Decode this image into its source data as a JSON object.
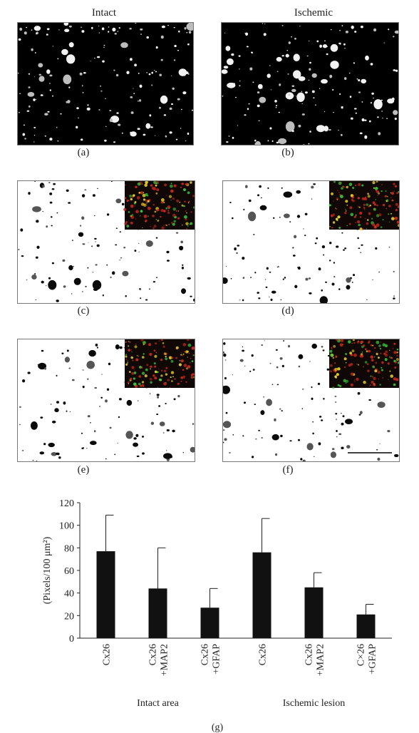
{
  "columns": {
    "left": "Intact",
    "right": "Ischemic"
  },
  "panels": [
    {
      "id": "a",
      "label": "(a)",
      "style": "dark",
      "inset": false
    },
    {
      "id": "b",
      "label": "(b)",
      "style": "dark",
      "inset": false
    },
    {
      "id": "c",
      "label": "(c)",
      "style": "light",
      "inset": true
    },
    {
      "id": "d",
      "label": "(d)",
      "style": "light",
      "inset": true
    },
    {
      "id": "e",
      "label": "(e)",
      "style": "light",
      "inset": true
    },
    {
      "id": "f",
      "label": "(f)",
      "style": "light",
      "inset": true,
      "scale_bar": true
    }
  ],
  "colors": {
    "bar": "#111111",
    "inset_red": "#c8281e",
    "inset_green": "#38c23a",
    "inset_yellow": "#e6d02a"
  },
  "chart_data": {
    "type": "bar",
    "panel_label": "(g)",
    "ylabel": "(Pixels/100 μm²)",
    "ylim": [
      0,
      120
    ],
    "yticks": [
      0,
      20,
      40,
      60,
      80,
      100,
      120
    ],
    "categories": [
      "Cx26",
      "Cx26 +MAP2",
      "Cx26 +GFAP",
      "Cx26",
      "Cx26 +MAP2",
      "C×26 +GFAP"
    ],
    "category_lines": [
      [
        "Cx26"
      ],
      [
        "Cx26",
        "+MAP2"
      ],
      [
        "Cx26",
        "+GFAP"
      ],
      [
        "Cx26"
      ],
      [
        "Cx26",
        "+MAP2"
      ],
      [
        "C×26",
        "+GFAP"
      ]
    ],
    "values": [
      77,
      44,
      27,
      76,
      45,
      21
    ],
    "errors": [
      32,
      36,
      17,
      30,
      13,
      9
    ],
    "groups": [
      {
        "label": "Intact area",
        "categories": [
          0,
          1,
          2
        ]
      },
      {
        "label": "Ischemic lesion",
        "categories": [
          3,
          4,
          5
        ]
      }
    ]
  }
}
